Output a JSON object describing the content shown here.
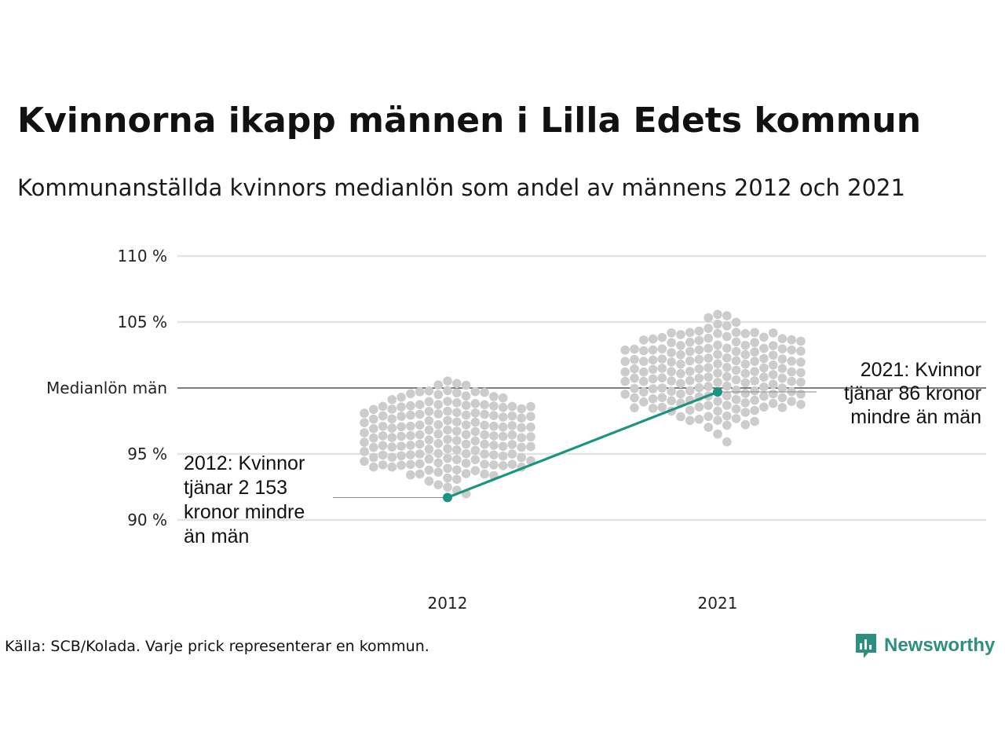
{
  "header": {
    "title": "Kvinnorna ikapp männen i Lilla Edets kommun",
    "subtitle": "Kommunanställda kvinnors medianlön som andel av männens 2012 och 2021"
  },
  "chart_data": {
    "type": "scatter",
    "categories": [
      "2012",
      "2021"
    ],
    "yticks": [
      {
        "value": 90,
        "label": "90 %"
      },
      {
        "value": 95,
        "label": "95 %"
      },
      {
        "value": 100,
        "label": "Medianlön män"
      },
      {
        "value": 105,
        "label": "105 %"
      },
      {
        "value": 110,
        "label": "110 %"
      }
    ],
    "ylim": [
      86,
      112
    ],
    "reference_line": {
      "value": 100,
      "label": "Medianlön män"
    },
    "highlight": {
      "name": "Lilla Edet",
      "color": "#1a9481",
      "points": [
        {
          "x": "2012",
          "y": 91.7
        },
        {
          "x": "2021",
          "y": 99.7
        }
      ]
    },
    "annotations": [
      {
        "x": "2012",
        "lines": [
          "2012: Kvinnor",
          "tjänar 2 153",
          "kronor mindre",
          "än män"
        ]
      },
      {
        "x": "2021",
        "lines": [
          "2021: Kvinnor",
          "tjänar 86 kronor",
          "mindre än män"
        ]
      }
    ],
    "distribution_color": "#cccccc",
    "grid": true
  },
  "footer": {
    "source": "Källa: SCB/Kolada. Varje prick representerar en kommun.",
    "brand": "Newsworthy"
  }
}
